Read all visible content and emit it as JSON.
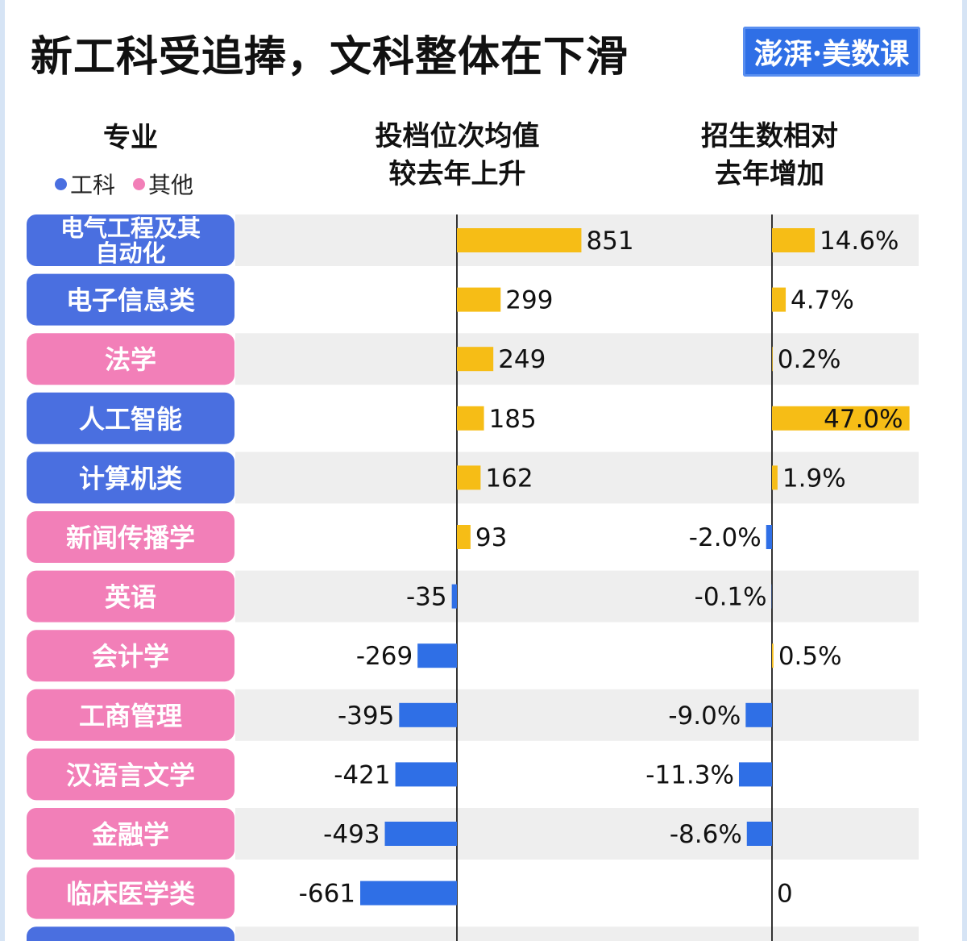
{
  "header": {
    "title": "新工科受追捧，文科整体在下滑",
    "logo_text": "澎湃·美数课",
    "col_major": "专业",
    "col_rank_line1": "投档位次均值",
    "col_rank_line2": "较去年上升",
    "col_enroll_line1": "招生数相对",
    "col_enroll_line2": "去年增加"
  },
  "legend": {
    "eng_label": "工科",
    "other_label": "其他"
  },
  "colors": {
    "eng": "#4a6fe0",
    "other": "#f27fb8",
    "bar_pos": "#f6bd16",
    "bar_neg": "#2f6fe6",
    "stripe": "#eeeeee"
  },
  "chart_data": {
    "type": "bar",
    "categories": [
      "电气工程及其自动化",
      "电子信息类",
      "法学",
      "人工智能",
      "计算机类",
      "新闻传播学",
      "英语",
      "会计学",
      "工商管理",
      "汉语言文学",
      "金融学",
      "临床医学类"
    ],
    "category_lines": [
      [
        "电气工程及其",
        "自动化"
      ],
      [
        "电子信息类"
      ],
      [
        "法学"
      ],
      [
        "人工智能"
      ],
      [
        "计算机类"
      ],
      [
        "新闻传播学"
      ],
      [
        "英语"
      ],
      [
        "会计学"
      ],
      [
        "工商管理"
      ],
      [
        "汉语言文学"
      ],
      [
        "金融学"
      ],
      [
        "临床医学类"
      ]
    ],
    "groups": [
      "工科",
      "工科",
      "其他",
      "工科",
      "工科",
      "其他",
      "其他",
      "其他",
      "其他",
      "其他",
      "其他",
      "其他"
    ],
    "series": [
      {
        "name": "投档位次均值较去年上升",
        "values": [
          851,
          299,
          249,
          185,
          162,
          93,
          -35,
          -269,
          -395,
          -421,
          -493,
          -661
        ],
        "labels": [
          "851",
          "299",
          "249",
          "185",
          "162",
          "93",
          "-35",
          "-269",
          "-395",
          "-421",
          "-493",
          "-661"
        ]
      },
      {
        "name": "招生数相对去年增加",
        "values": [
          14.6,
          4.7,
          0.2,
          47.0,
          1.9,
          -2.0,
          -0.1,
          0.5,
          -9.0,
          -11.3,
          -8.6,
          0
        ],
        "labels": [
          "14.6%",
          "4.7%",
          "0.2%",
          "47.0%",
          "1.9%",
          "-2.0%",
          "-0.1%",
          "0.5%",
          "-9.0%",
          "-11.3%",
          "-8.6%",
          "0"
        ]
      }
    ]
  }
}
